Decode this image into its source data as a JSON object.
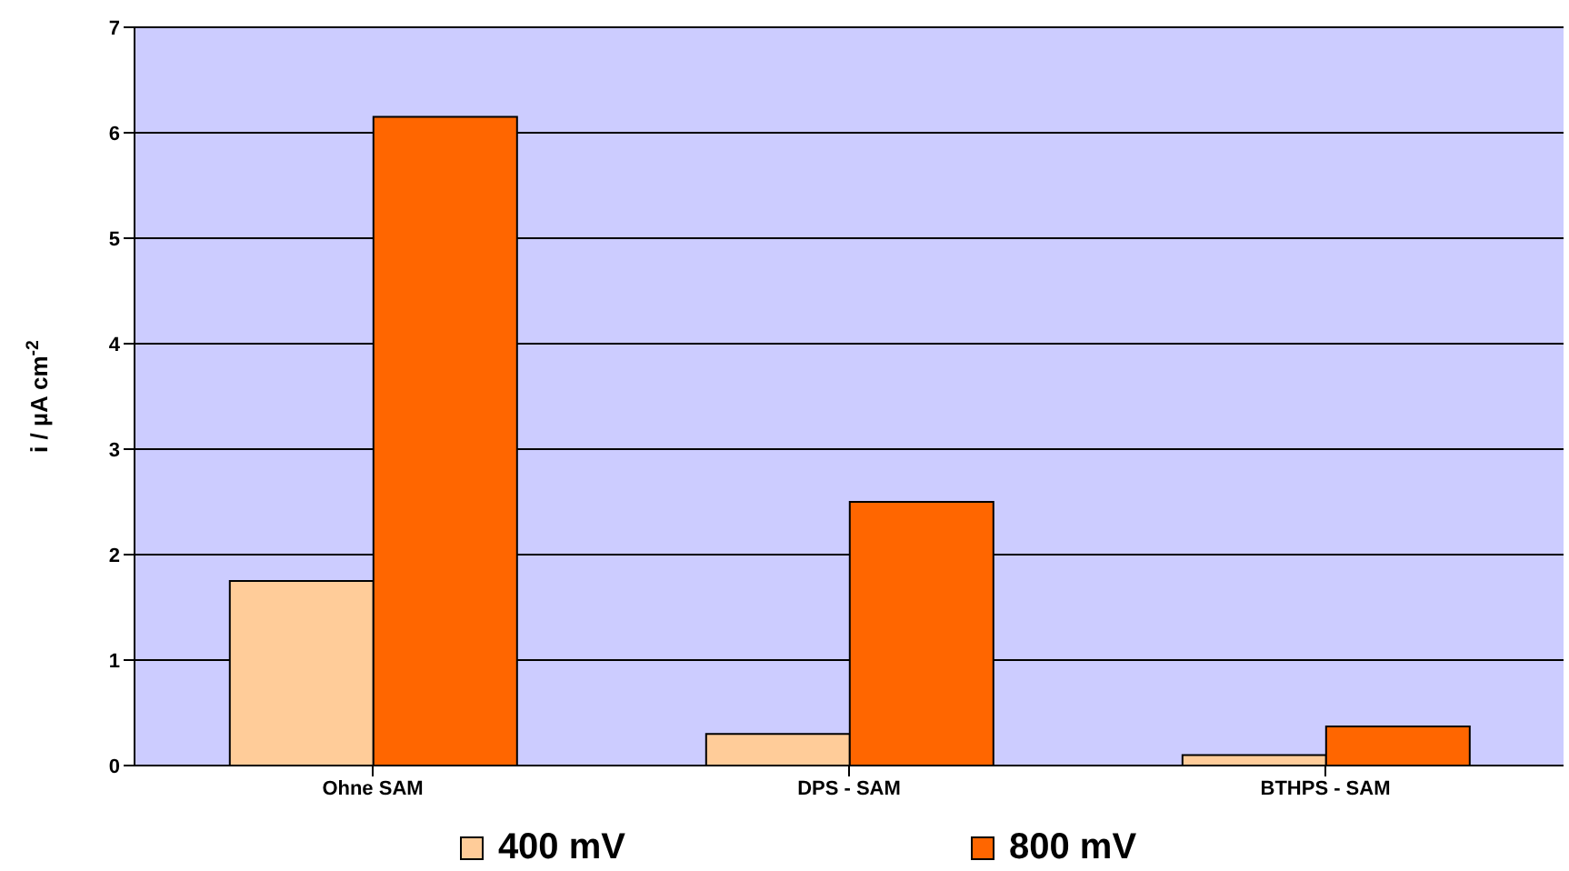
{
  "chart_data": {
    "type": "bar",
    "ylabel": "i / µA cm$^{-2}$",
    "categories": [
      "Ohne SAM",
      "DPS - SAM",
      "BTHPS - SAM"
    ],
    "series": [
      {
        "name": "400 mV",
        "color": "#ffcc99",
        "values": [
          1.75,
          0.3,
          0.1
        ]
      },
      {
        "name": "800 mV",
        "color": "#ff6600",
        "values": [
          6.15,
          2.5,
          0.37
        ]
      }
    ],
    "ylim": [
      0,
      7
    ],
    "yticks": [
      0,
      1,
      2,
      3,
      4,
      5,
      6,
      7
    ],
    "grid": "y",
    "legend": "bottom"
  }
}
